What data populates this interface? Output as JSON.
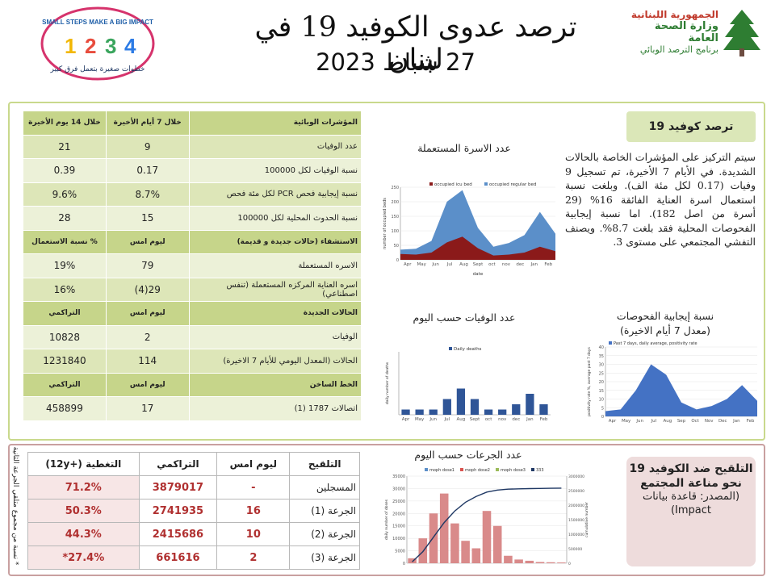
{
  "header": {
    "title": "ترصد عدوى الكوفيد 19 في لبنان",
    "date": "27 شباط 2023",
    "ministry_line1": "الجمهورية اللبنانية",
    "ministry_line2": "وزارة الصحة العامة",
    "ministry_line3": "برنامج الترصد الوبائي",
    "campaign_en": "SMALL STEPS MAKE A BIG IMPACT",
    "campaign_ar": "خطوات صغيرة بتعمل فرق كبير"
  },
  "indicators": {
    "header": [
      "المؤشرات الوبائية",
      "خلال 7 أيام الأخيرة",
      "خلال 14 يوم الأخيرة"
    ],
    "rows": [
      [
        "عدد الوفيات",
        "9",
        "21"
      ],
      [
        "نسبة الوفيات لكل 100000",
        "0.17",
        "0.39"
      ],
      [
        "نسبة إيجابية فحص PCR لكل مئة فحص",
        "8.7%",
        "9.6%"
      ],
      [
        "نسبة الحدوث المحلية لكل 100000",
        "15",
        "28"
      ]
    ],
    "hosp_header": [
      "الاستشفاء (حالات جديدة و قديمة)",
      "ليوم امس",
      "% نسبة الاستعمال"
    ],
    "hosp_rows": [
      [
        "الاسره المستعملة",
        "79",
        "19%"
      ],
      [
        "اسره العناية المركزه المستعملة (تنفس اصطناعي)",
        "29(4)",
        "16%"
      ]
    ],
    "new_header": [
      "الحالات الجديدة",
      "ليوم امس",
      "التراكمي"
    ],
    "new_rows": [
      [
        "الوفيات",
        "2",
        "10828"
      ],
      [
        "الحالات (المعدل اليومي للأيام 7 الاخيرة)",
        "114",
        "1231840"
      ]
    ],
    "hotline_header": [
      "الخط الساخن",
      "ليوم امس",
      "التراكمي"
    ],
    "hotline_rows": [
      [
        "اتصالات 1787 (1)",
        "17",
        "458899"
      ]
    ]
  },
  "summary": {
    "badge": "ترصد كوفيد 19",
    "text": "سيتم التركيز على المؤشرات الخاصة بالحالات الشديدة. في الأيام 7 الأخيرة، تم تسجيل 9 وفيات (0.17 لكل مئة الف). وبلغت نسبة استعمال اسرة العناية الفائقة 16% (29 أسرة من اصل 182). اما نسبة إيجابية الفحوصات المحلية فقد بلغت 8.7%. ويصنف التفشي المجتمعي على مستوى 3."
  },
  "charts": {
    "beds_title": "عدد الاسرة المستعملة",
    "deaths_title": "عدد الوفيات حسب اليوم",
    "positivity_title": "نسبة إيجابية الفحوصات",
    "positivity_subtitle": "(معدل 7 أيام الاخيرة)",
    "doses_title": "عدد الجرعات حسب اليوم"
  },
  "chart_data": [
    {
      "type": "area",
      "title": "عدد الاسرة المستعملة",
      "xlabel": "date",
      "ylabel": "number of occupied beds",
      "ylim": [
        0,
        250
      ],
      "yticks": [
        0,
        50,
        100,
        150,
        200,
        250
      ],
      "categories": [
        "Apr",
        "May",
        "Jun",
        "Jul",
        "Aug",
        "Sept",
        "oct",
        "nov",
        "dec",
        "Jan",
        "Feb"
      ],
      "series": [
        {
          "name": "occupied icu bed",
          "color": "#8b1a1a",
          "values": [
            20,
            18,
            25,
            60,
            80,
            40,
            15,
            18,
            25,
            45,
            30
          ]
        },
        {
          "name": "occupied regular bed",
          "color": "#5b8fc9",
          "values": [
            15,
            20,
            40,
            140,
            160,
            70,
            30,
            40,
            60,
            120,
            60
          ]
        }
      ]
    },
    {
      "type": "bar",
      "title": "عدد الوفيات حسب اليوم",
      "ylabel": "daily number of deaths",
      "legend": "Daily deaths",
      "ylim": [
        0,
        12
      ],
      "categories": [
        "Apr",
        "May",
        "Jun",
        "Jul",
        "Aug",
        "Sept",
        "oct",
        "nov",
        "dec",
        "Jan",
        "Feb"
      ],
      "values": [
        1,
        1,
        1,
        3,
        5,
        3,
        1,
        1,
        2,
        4,
        2
      ]
    },
    {
      "type": "area",
      "title": "نسبة إيجابية الفحوصات",
      "legend": "Past 7 days, daily average, positivity rate",
      "ylabel": "positivity rate %, average past 7 days",
      "ylim": [
        0,
        40
      ],
      "yticks": [
        0,
        5,
        10,
        15,
        20,
        25,
        30,
        35,
        40
      ],
      "categories": [
        "Apr",
        "May",
        "Jun",
        "Jul",
        "Aug",
        "Sep",
        "Oct",
        "Nov",
        "Dec",
        "Jan",
        "Feb"
      ],
      "values": [
        3,
        4,
        15,
        30,
        24,
        8,
        4,
        6,
        10,
        18,
        9
      ]
    },
    {
      "type": "bar",
      "title": "عدد الجرعات حسب اليوم",
      "ylabel": "daily number of doses",
      "y2label": "cumulative number",
      "ylim": [
        0,
        35000
      ],
      "y2lim": [
        0,
        3000000
      ],
      "yticks": [
        0,
        5000,
        10000,
        15000,
        20000,
        25000,
        30000,
        35000
      ],
      "y2ticks": [
        0,
        500000,
        1000000,
        1500000,
        2000000,
        2500000,
        3000000
      ],
      "series": [
        {
          "name": "moph dose1",
          "color": "#5b8fc9"
        },
        {
          "name": "moph dose2",
          "color": "#d9534f"
        },
        {
          "name": "moph dose3",
          "color": "#9bbb59"
        },
        {
          "name": "333",
          "color": "#1f3864"
        }
      ],
      "values": [
        2000,
        10000,
        20000,
        28000,
        16000,
        9000,
        6000,
        21000,
        15000,
        3000,
        1500,
        1000,
        500,
        400,
        300
      ],
      "cumulative": [
        50000,
        400000,
        900000,
        1400000,
        1800000,
        2100000,
        2300000,
        2450000,
        2520000,
        2550000,
        2560000,
        2570000,
        2575000,
        2580000,
        2585000
      ]
    }
  ],
  "vaccination": {
    "header": [
      "التلقيح",
      "ليوم امس",
      "التراكمي",
      "التغطية (+12y)"
    ],
    "rows": [
      [
        "المسجلين",
        "-",
        "3879017",
        "71.2%"
      ],
      [
        "الجرعة (1)",
        "16",
        "2741935",
        "50.3%"
      ],
      [
        "الجرعة (2)",
        "10",
        "2415686",
        "44.3%"
      ],
      [
        "الجرعة (3)",
        "2",
        "661616",
        "27.4%*"
      ]
    ],
    "side_note": "* نسبة من مجموع متلقي الجرعة الثانية",
    "badge_title": "التلقيح ضد الكوفيد 19 نحو مناعة المجتمع",
    "badge_source": "(المصدر: قاعدة بيانات Impact)"
  }
}
